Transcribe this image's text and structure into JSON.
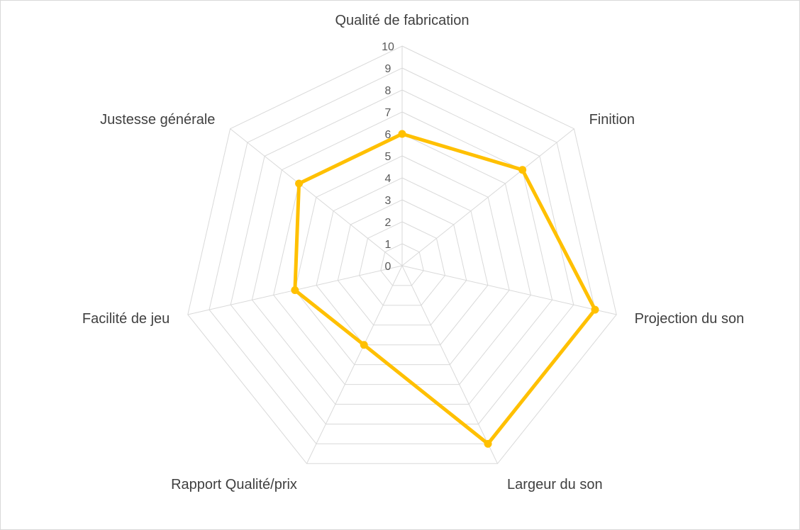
{
  "chart_data": {
    "type": "radar",
    "title": "",
    "categories": [
      "Qualité de fabrication",
      "Finition",
      "Projection du son",
      "Largeur du son",
      "Rapport Qualité/prix",
      "Facilité de jeu",
      "Justesse générale"
    ],
    "series": [
      {
        "values": [
          6,
          7,
          9,
          9,
          4,
          5,
          6
        ]
      }
    ],
    "r_range": [
      0,
      10
    ],
    "ticks": [
      "0",
      "1",
      "2",
      "3",
      "4",
      "5",
      "6",
      "7",
      "8",
      "9",
      "10"
    ],
    "grid": true,
    "legend": "none",
    "colors": {
      "series": "#ffc000",
      "grid": "#d9d9d9",
      "label": "#404040",
      "tick": "#595959"
    }
  }
}
